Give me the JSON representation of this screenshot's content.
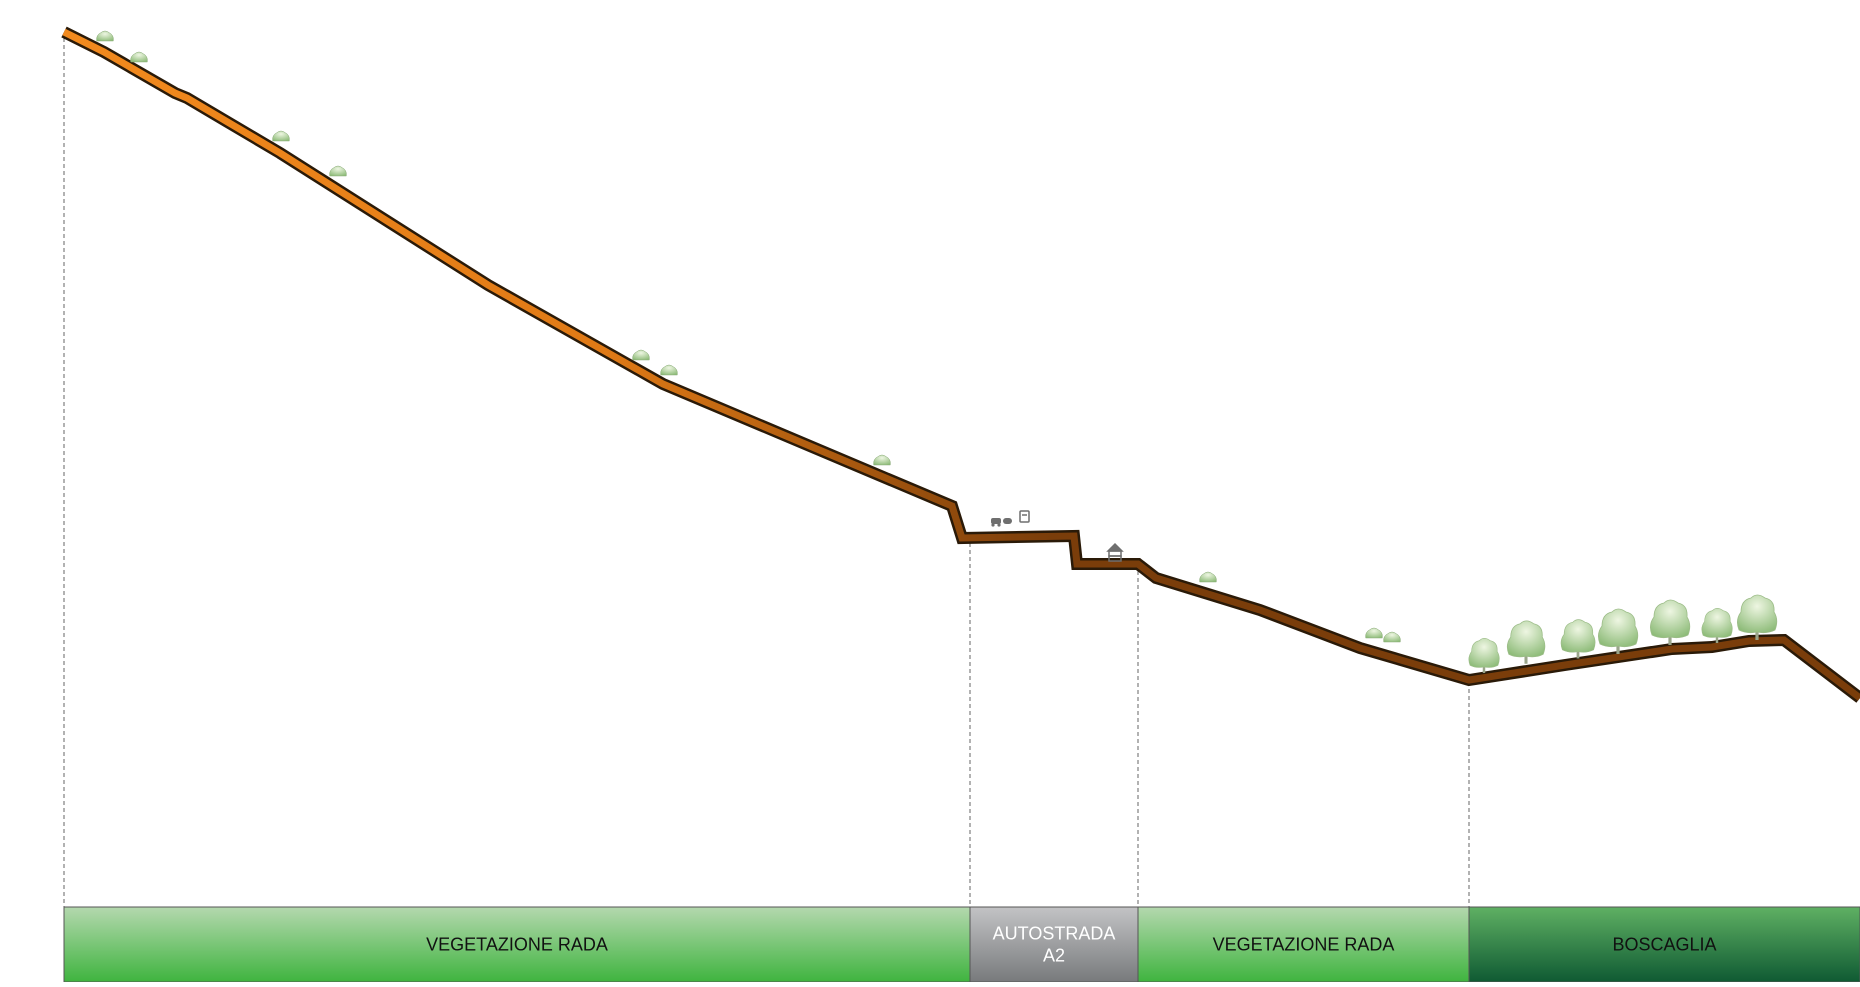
{
  "zones": [
    {
      "label_lines": [
        "VEGETAZIONE RADA"
      ],
      "type": "sparse-vegetation",
      "colors": [
        "#b4d8ae",
        "#3fb43f"
      ]
    },
    {
      "label_lines": [
        "AUTOSTRADA",
        "A2"
      ],
      "type": "highway",
      "colors": [
        "#c3c3c5",
        "#787a7c"
      ]
    },
    {
      "label_lines": [
        "VEGETAZIONE RADA"
      ],
      "type": "sparse-vegetation",
      "colors": [
        "#b4d8ae",
        "#3fb43f"
      ]
    },
    {
      "label_lines": [
        "BOSCAGLIA"
      ],
      "type": "woodland",
      "colors": [
        "#5fb063",
        "#0f5a33"
      ]
    }
  ],
  "colors": {
    "terrain_orange": "#f28a1e",
    "terrain_brown": "#7a3d0a",
    "outline": "#2a1a08",
    "tree_light": "#d8ebc4",
    "tree_dark": "#8dbb78",
    "divider": "#666666"
  },
  "icons": [
    "shrub-icon",
    "tree-icon",
    "car-icon",
    "truck-icon",
    "bus-icon",
    "tollbooth-icon"
  ]
}
